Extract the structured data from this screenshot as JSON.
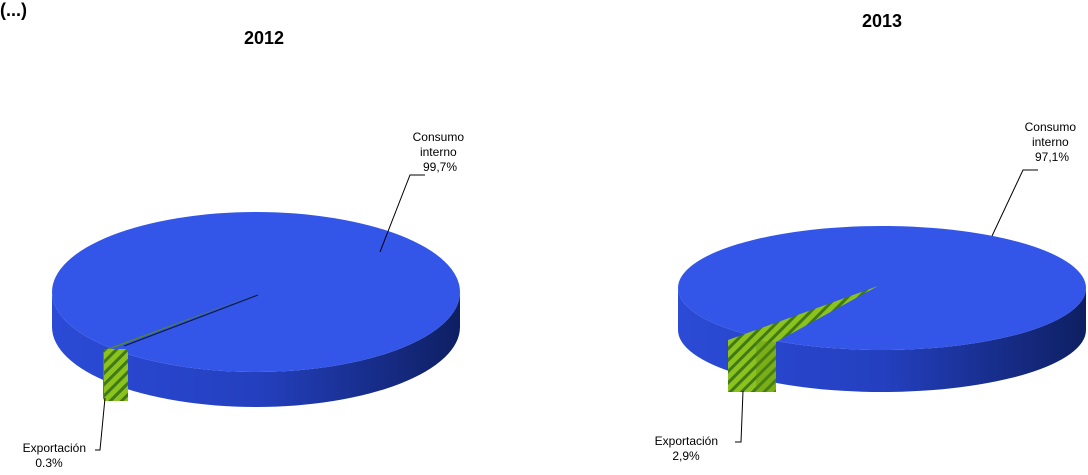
{
  "page": {
    "partial_header": "(...)"
  },
  "colors": {
    "consumo": "#3355e8",
    "consumo_side_light": "#2f52e0",
    "consumo_side_dark": "#0d1f63",
    "exportacion": "#7ab317",
    "exportacion_dark": "#3e6a0a"
  },
  "chart_data": [
    {
      "type": "pie",
      "title": "2012",
      "slices": [
        {
          "label": "Consumo\ninterno",
          "value_text": "99,7%",
          "value": 99.7
        },
        {
          "label": "Exportación",
          "value_text": "0.3%",
          "value": 0.3
        }
      ]
    },
    {
      "type": "pie",
      "title": "2013",
      "slices": [
        {
          "label": "Consumo\ninterno",
          "value_text": "97,1%",
          "value": 97.1
        },
        {
          "label": "Exportación",
          "value_text": "2,9%",
          "value": 2.9
        }
      ]
    }
  ]
}
